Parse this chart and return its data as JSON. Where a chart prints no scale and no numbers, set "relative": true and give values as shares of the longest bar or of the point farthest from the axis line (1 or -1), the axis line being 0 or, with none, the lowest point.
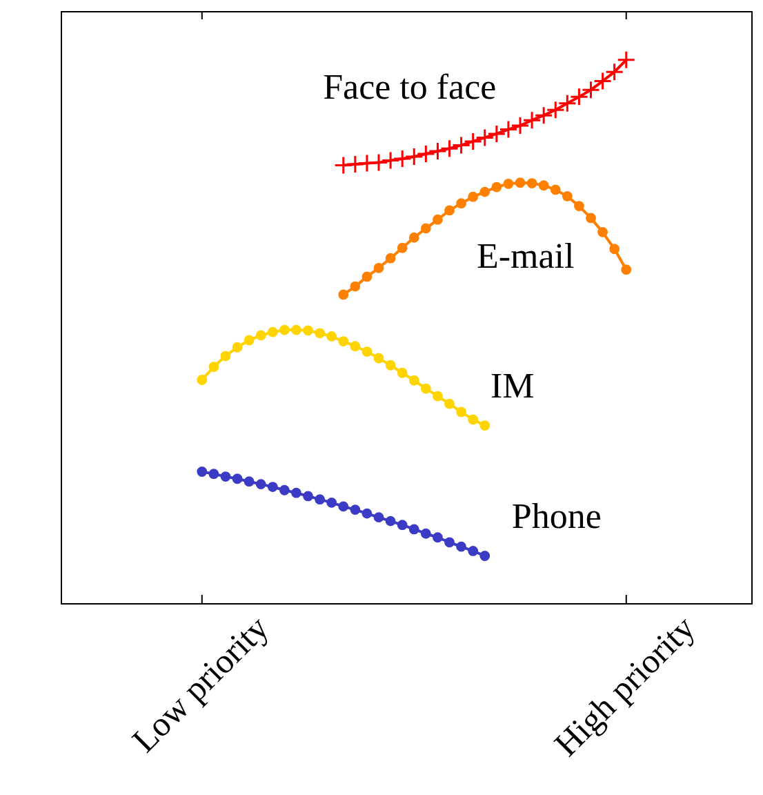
{
  "chart_data": {
    "type": "line",
    "relative": true,
    "categories": [
      "Low priority",
      null,
      null,
      null,
      null,
      null,
      null,
      null,
      null,
      null,
      null,
      null,
      null,
      null,
      null,
      null,
      null,
      null,
      null,
      null,
      null,
      null,
      null,
      null,
      null,
      null,
      null,
      null,
      null,
      null,
      null,
      null,
      null,
      null,
      null,
      null,
      "High priority"
    ],
    "series": [
      {
        "name": "Face to face",
        "marker": "cross",
        "color": "#ff0000",
        "values": [
          null,
          null,
          null,
          null,
          null,
          null,
          null,
          null,
          null,
          null,
          null,
          null,
          0.806,
          0.808,
          0.81,
          0.811,
          0.815,
          0.818,
          0.822,
          0.827,
          0.832,
          0.837,
          0.843,
          0.85,
          0.857,
          0.864,
          0.872,
          0.879,
          0.889,
          0.898,
          0.908,
          0.92,
          0.932,
          0.945,
          0.961,
          0.978,
          1
        ]
      },
      {
        "name": "E-mail",
        "marker": "circle",
        "color": "#ff8000",
        "values": [
          null,
          null,
          null,
          null,
          null,
          null,
          null,
          null,
          null,
          null,
          null,
          null,
          0.568,
          0.583,
          0.601,
          0.617,
          0.635,
          0.654,
          0.673,
          0.69,
          0.706,
          0.723,
          0.736,
          0.748,
          0.757,
          0.766,
          0.772,
          0.774,
          0.773,
          0.769,
          0.761,
          0.749,
          0.731,
          0.709,
          0.683,
          0.652,
          0.614
        ]
      },
      {
        "name": "IM",
        "marker": "circle",
        "color": "#ffd400",
        "values": [
          0.411,
          0.435,
          0.455,
          0.471,
          0.484,
          0.493,
          0.499,
          0.503,
          0.503,
          0.502,
          0.497,
          0.491,
          0.482,
          0.473,
          0.463,
          0.451,
          0.438,
          0.424,
          0.41,
          0.395,
          0.381,
          0.367,
          0.352,
          0.338,
          0.327,
          null,
          null,
          null,
          null,
          null,
          null,
          null,
          null,
          null,
          null,
          null,
          null
        ]
      },
      {
        "name": "Phone",
        "marker": "circle",
        "color": "#3b3bc5",
        "values": [
          0.242,
          0.238,
          0.233,
          0.229,
          0.224,
          0.219,
          0.214,
          0.208,
          0.203,
          0.197,
          0.191,
          0.185,
          0.178,
          0.172,
          0.165,
          0.158,
          0.151,
          0.144,
          0.136,
          0.128,
          0.121,
          0.112,
          0.104,
          0.096,
          0.087,
          null,
          null,
          null,
          null,
          null,
          null,
          null,
          null,
          null,
          null,
          null,
          null
        ]
      }
    ]
  }
}
